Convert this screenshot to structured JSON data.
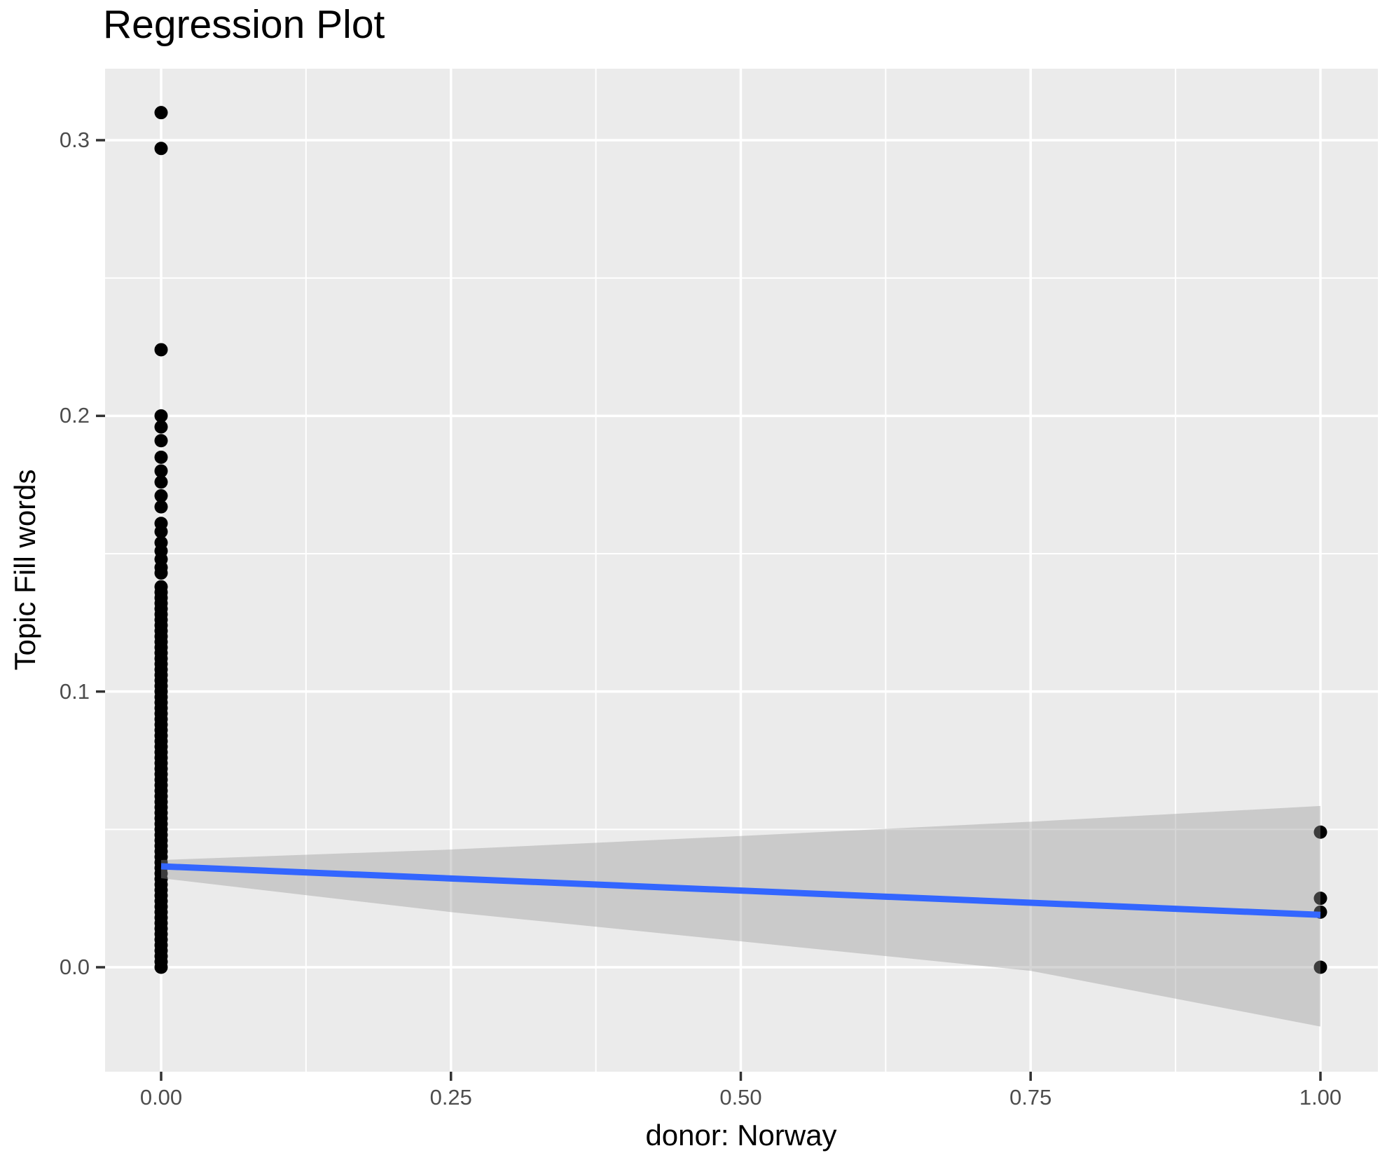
{
  "title": "Regression Plot",
  "colors": {
    "panel_background": "#EBEBEB",
    "gridline": "#FFFFFF",
    "point": "#000000",
    "regression_line": "#3366FF",
    "confidence_band": "#999999",
    "confidence_band_opacity": 0.4,
    "tick_label_text": "#4D4D4D",
    "tick_mark": "#333333",
    "title_text": "#000000"
  },
  "chart_data": {
    "type": "scatter",
    "title": "Regression Plot",
    "xlabel": "donor: Norway",
    "ylabel": "Topic Fill words",
    "xlim": [
      -0.048,
      1.05
    ],
    "ylim": [
      -0.038,
      0.326
    ],
    "legend": "none",
    "grid": {
      "style": "white major and minor gridlines on gray panel"
    },
    "x_ticks": {
      "values": [
        0,
        0.25,
        0.5,
        0.75,
        1.0
      ],
      "labels": [
        "0.00",
        "0.25",
        "0.50",
        "0.75",
        "1.00"
      ]
    },
    "y_ticks": {
      "values": [
        0,
        0.1,
        0.2,
        0.3
      ],
      "labels": [
        "0.0",
        "0.1",
        "0.2",
        "0.3"
      ]
    },
    "x_minor_gridlines": [
      0.125,
      0.375,
      0.625,
      0.875
    ],
    "y_minor_gridlines": [
      0.05,
      0.15,
      0.25
    ],
    "series": [
      {
        "name": "observations at donor = 0",
        "x": 0,
        "y_values": [
          0.31,
          0.297,
          0.224,
          0.2,
          0.196,
          0.191,
          0.185,
          0.18,
          0.176,
          0.171,
          0.167,
          0.161,
          0.158,
          0.154,
          0.151,
          0.148,
          0.145,
          0.143,
          0.138,
          0.136,
          0.134,
          0.132,
          0.13,
          0.128,
          0.126,
          0.124,
          0.122,
          0.12,
          0.118,
          0.116,
          0.114,
          0.112,
          0.11,
          0.108,
          0.106,
          0.104,
          0.102,
          0.1,
          0.098,
          0.096,
          0.094,
          0.092,
          0.09,
          0.088,
          0.086,
          0.084,
          0.082,
          0.08,
          0.078,
          0.076,
          0.074,
          0.072,
          0.07,
          0.068,
          0.066,
          0.064,
          0.062,
          0.06,
          0.058,
          0.056,
          0.054,
          0.052,
          0.05,
          0.048,
          0.046,
          0.044,
          0.042,
          0.04,
          0.038,
          0.036,
          0.034,
          0.032,
          0.03,
          0.028,
          0.026,
          0.024,
          0.022,
          0.02,
          0.018,
          0.016,
          0.014,
          0.012,
          0.01,
          0.008,
          0.006,
          0.004,
          0.002,
          0.0
        ]
      },
      {
        "name": "observations at donor = 1",
        "x": 1,
        "y_values": [
          0.049,
          0.025,
          0.02,
          0.0
        ]
      }
    ],
    "regression_line": {
      "x": [
        0,
        1
      ],
      "y": [
        0.0366,
        0.019
      ]
    },
    "confidence_band": {
      "x": [
        0,
        0.25,
        0.5,
        0.75,
        1
      ],
      "upper": [
        0.0389,
        0.0427,
        0.0476,
        0.0528,
        0.0585
      ],
      "lower": [
        0.0323,
        0.02,
        0.0094,
        -0.0013,
        -0.0215
      ]
    }
  }
}
